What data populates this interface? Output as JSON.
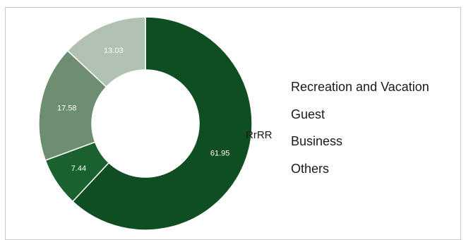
{
  "chart_data": {
    "type": "pie",
    "variant": "donut",
    "categories": [
      "Recreation and Vacation",
      "Guest",
      "Business",
      "Others"
    ],
    "values": [
      61.95,
      7.44,
      17.58,
      13.03
    ],
    "slice_colors": [
      "#0f4d22",
      "#1a6130",
      "#6e8e72",
      "#b1c1b2"
    ],
    "label_color": "#ffffff",
    "legend": [
      "Recreation and Vacation",
      "Guest",
      "Business",
      "Others"
    ],
    "legend_position": "right",
    "legend_markers_visible": false,
    "stray_text": "RrRR"
  }
}
